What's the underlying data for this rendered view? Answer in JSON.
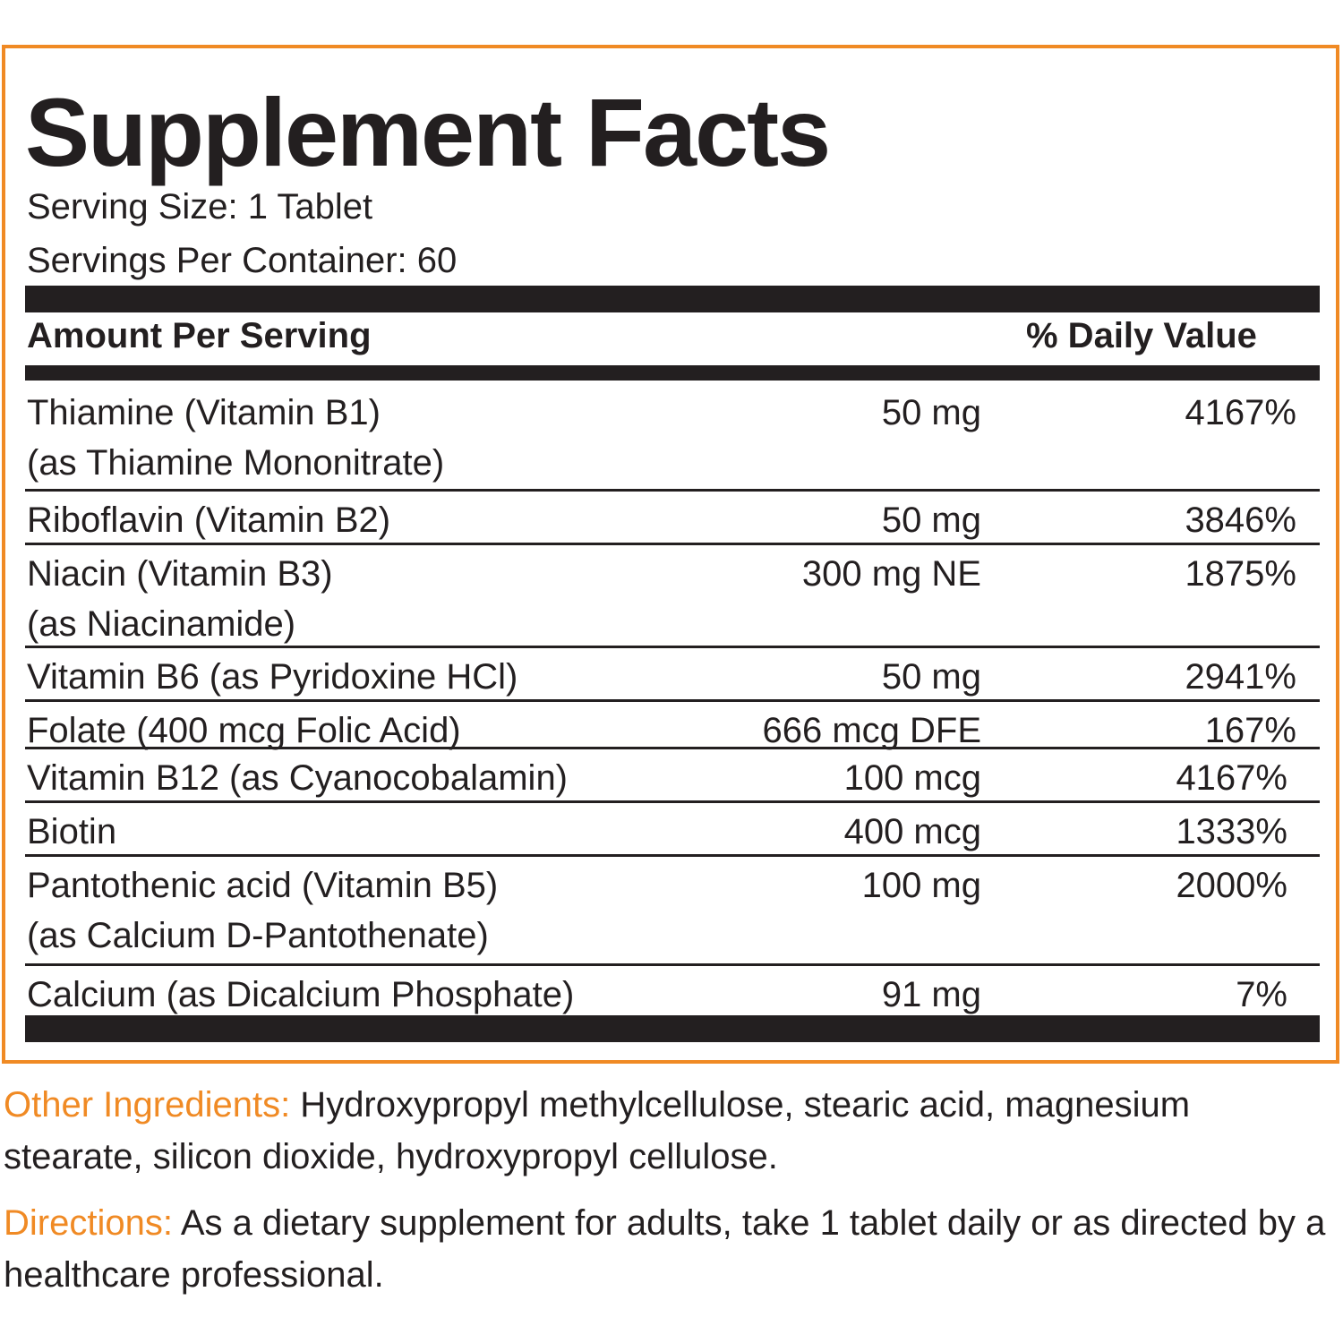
{
  "colors": {
    "accent": "#f08a24",
    "ink": "#231f20"
  },
  "title": "Supplement Facts",
  "serving_size": "Serving Size: 1 Tablet",
  "servings_per_container": "Servings Per Container: 60",
  "headers": {
    "amount": "Amount Per Serving",
    "daily_value": "% Daily Value"
  },
  "nutrients": [
    {
      "line1": "Thiamine (Vitamin B1)",
      "line2": "(as Thiamine Mononitrate)",
      "amount": "50 mg",
      "dv": "4167%"
    },
    {
      "line1": "Riboflavin (Vitamin B2)",
      "line2": "",
      "amount": "50 mg",
      "dv": "3846%"
    },
    {
      "line1": "Niacin (Vitamin B3)",
      "line2": "(as Niacinamide)",
      "amount": "300 mg NE",
      "dv": "1875%"
    },
    {
      "line1": "Vitamin B6 (as Pyridoxine HCl)",
      "line2": "",
      "amount": "50 mg",
      "dv": "2941%"
    },
    {
      "line1": "Folate (400 mcg Folic Acid)",
      "line2": "",
      "amount": "666 mcg DFE",
      "dv": "167%"
    },
    {
      "line1": "Vitamin B12 (as Cyanocobalamin)",
      "line2": "",
      "amount": "100 mcg",
      "dv": "4167%"
    },
    {
      "line1": "Biotin",
      "line2": "",
      "amount": "400 mcg",
      "dv": "1333%"
    },
    {
      "line1": "Pantothenic acid (Vitamin B5)",
      "line2": "(as Calcium D-Pantothenate)",
      "amount": "100 mg",
      "dv": "2000%"
    },
    {
      "line1": "Calcium (as Dicalcium Phosphate)",
      "line2": "",
      "amount": "91 mg",
      "dv": "7%"
    }
  ],
  "other_ingredients": {
    "label": "Other Ingredients:",
    "text": " Hydroxypropyl methylcellulose, stearic acid, magnesium stearate, silicon dioxide, hydroxypropyl cellulose."
  },
  "directions": {
    "label": "Directions:",
    "text": " As a dietary supplement for adults, take 1 tablet daily or as directed by a healthcare professional."
  }
}
